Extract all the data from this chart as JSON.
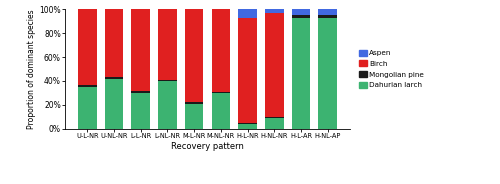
{
  "categories": [
    "U-L-NR",
    "U-NL-NR",
    "L-L-NR",
    "L-NL-NR",
    "M-L-NR",
    "M-NL-NR",
    "H-L-NR",
    "H-NL-NR",
    "H-L-AR",
    "H-NL-AP"
  ],
  "dahurian_larch": [
    35,
    42,
    30,
    40,
    21,
    30,
    4,
    9,
    93,
    93
  ],
  "mongolian_pine": [
    2,
    1,
    2,
    1,
    1,
    1,
    1,
    1,
    2,
    2
  ],
  "birch": [
    63,
    57,
    68,
    59,
    78,
    69,
    88,
    87,
    0,
    0
  ],
  "aspen": [
    0,
    0,
    0,
    0,
    0,
    0,
    7,
    3,
    5,
    5
  ],
  "colors": {
    "dahurian_larch": "#3cb371",
    "mongolian_pine": "#1a1a1a",
    "birch": "#e02020",
    "aspen": "#4169e1"
  },
  "ylabel": "Proportion of dominant species",
  "xlabel": "Recovery pattern",
  "ylim": [
    0,
    100
  ],
  "yticks": [
    0,
    20,
    40,
    60,
    80,
    100
  ],
  "ytick_labels": [
    "0%",
    "20%",
    "40%",
    "60%",
    "80%",
    "100%"
  ],
  "legend_labels": [
    "Aspen",
    "Birch",
    "Mongolian pine",
    "Dahurian larch"
  ],
  "figsize": [
    5.0,
    1.84
  ],
  "dpi": 100
}
